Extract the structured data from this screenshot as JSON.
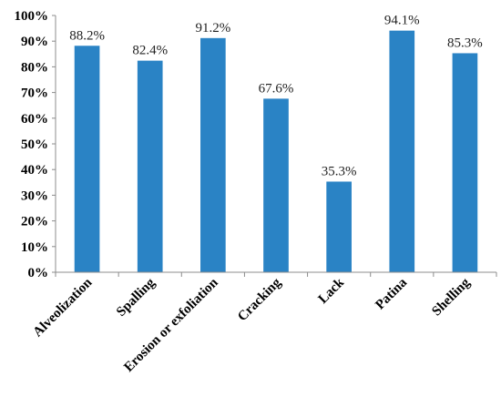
{
  "chart_data": {
    "type": "bar",
    "categories": [
      "Alveolization",
      "Spalling",
      "Erosion or exfoliation",
      "Cracking",
      "Lack",
      "Patina",
      "Shelling"
    ],
    "values": [
      88.2,
      82.4,
      91.2,
      67.6,
      35.3,
      94.1,
      85.3
    ],
    "data_labels": [
      "88.2%",
      "82.4%",
      "91.2%",
      "67.6%",
      "35.3%",
      "94.1%",
      "85.3%"
    ],
    "y_ticks": [
      "0%",
      "10%",
      "20%",
      "30%",
      "40%",
      "50%",
      "60%",
      "70%",
      "80%",
      "90%",
      "100%"
    ],
    "ylim": [
      0,
      100
    ],
    "grid": false,
    "legend": "none",
    "bar_color": "#2a83c5"
  }
}
